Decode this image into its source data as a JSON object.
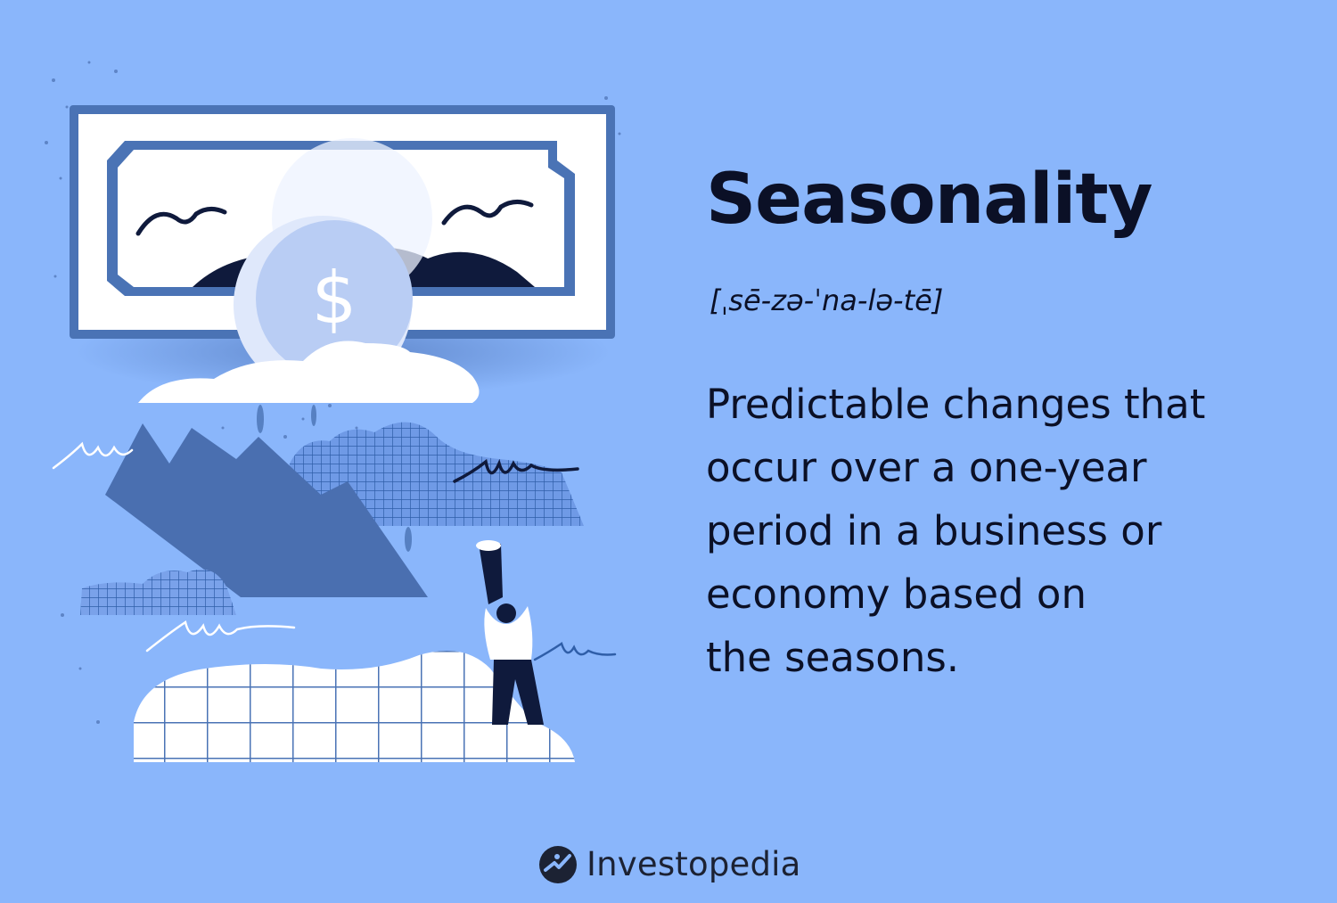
{
  "term": "Seasonality",
  "pronunciation": "[ˌsē-zə-ˈna-lə-tē]",
  "definition_lines": [
    "Predictable changes that",
    "occur over a one-year",
    "period in a business or",
    "economy based on",
    "the seasons."
  ],
  "brand": {
    "name": "Investopedia",
    "icon": "investopedia-logo-icon"
  },
  "illustration": {
    "subject": "dollar-bill-coin-and-person-with-spyglass",
    "coin_symbol": "$"
  },
  "colors": {
    "background": "#8ab6fb",
    "text": "#0b1026",
    "accent_blue": "#4a73b5",
    "dark_navy": "#0f1a3c",
    "white": "#ffffff"
  }
}
